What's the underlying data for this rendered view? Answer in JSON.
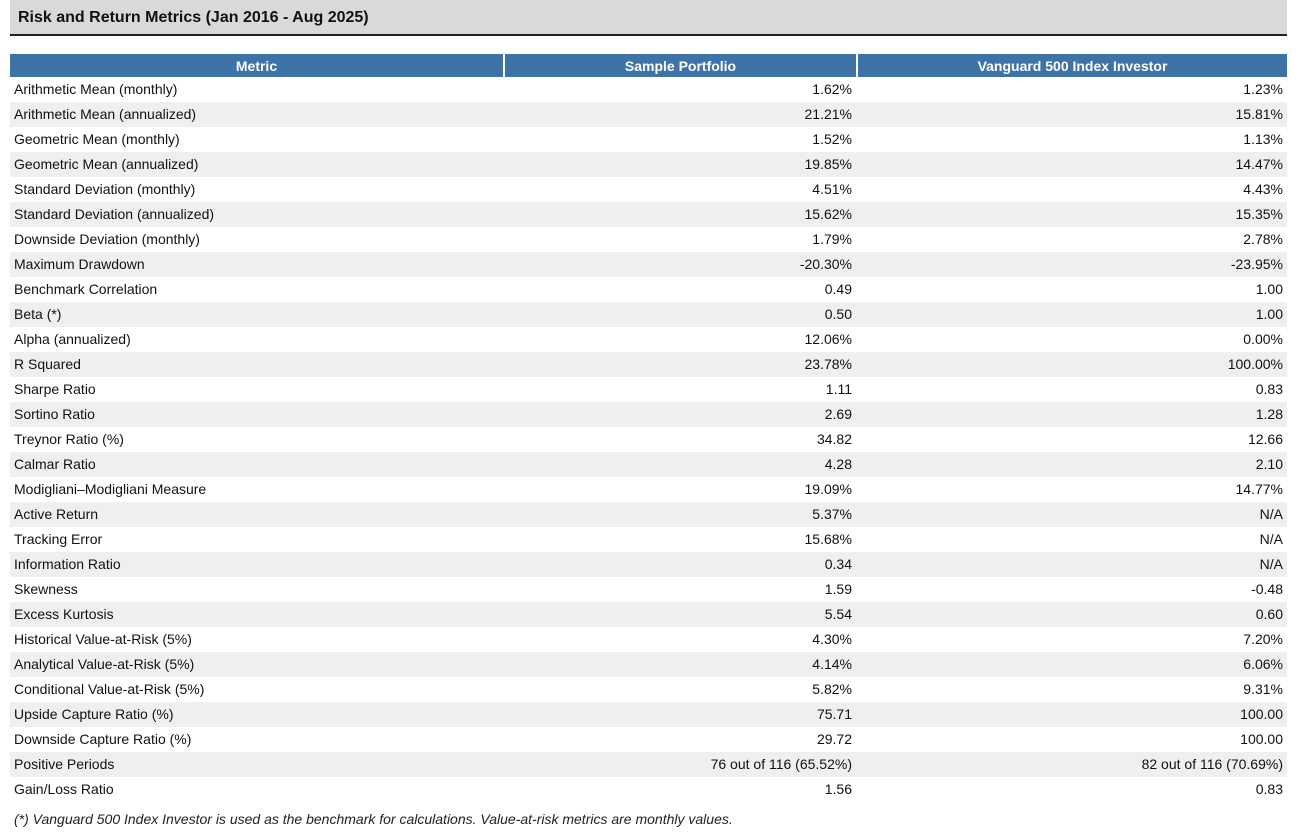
{
  "title": "Risk and Return Metrics (Jan 2016 - Aug 2025)",
  "table": {
    "headers": [
      "Metric",
      "Sample Portfolio",
      "Vanguard 500 Index Investor"
    ],
    "rows": [
      {
        "metric": "Arithmetic Mean (monthly)",
        "portfolio": "1.62%",
        "benchmark": "1.23%"
      },
      {
        "metric": "Arithmetic Mean (annualized)",
        "portfolio": "21.21%",
        "benchmark": "15.81%"
      },
      {
        "metric": "Geometric Mean (monthly)",
        "portfolio": "1.52%",
        "benchmark": "1.13%"
      },
      {
        "metric": "Geometric Mean (annualized)",
        "portfolio": "19.85%",
        "benchmark": "14.47%"
      },
      {
        "metric": "Standard Deviation (monthly)",
        "portfolio": "4.51%",
        "benchmark": "4.43%"
      },
      {
        "metric": "Standard Deviation (annualized)",
        "portfolio": "15.62%",
        "benchmark": "15.35%"
      },
      {
        "metric": "Downside Deviation (monthly)",
        "portfolio": "1.79%",
        "benchmark": "2.78%"
      },
      {
        "metric": "Maximum Drawdown",
        "portfolio": "-20.30%",
        "benchmark": "-23.95%"
      },
      {
        "metric": "Benchmark Correlation",
        "portfolio": "0.49",
        "benchmark": "1.00"
      },
      {
        "metric": "Beta (*)",
        "portfolio": "0.50",
        "benchmark": "1.00"
      },
      {
        "metric": "Alpha (annualized)",
        "portfolio": "12.06%",
        "benchmark": "0.00%"
      },
      {
        "metric": "R Squared",
        "portfolio": "23.78%",
        "benchmark": "100.00%"
      },
      {
        "metric": "Sharpe Ratio",
        "portfolio": "1.11",
        "benchmark": "0.83"
      },
      {
        "metric": "Sortino Ratio",
        "portfolio": "2.69",
        "benchmark": "1.28"
      },
      {
        "metric": "Treynor Ratio (%)",
        "portfolio": "34.82",
        "benchmark": "12.66"
      },
      {
        "metric": "Calmar Ratio",
        "portfolio": "4.28",
        "benchmark": "2.10"
      },
      {
        "metric": "Modigliani–Modigliani Measure",
        "portfolio": "19.09%",
        "benchmark": "14.77%"
      },
      {
        "metric": "Active Return",
        "portfolio": "5.37%",
        "benchmark": "N/A"
      },
      {
        "metric": "Tracking Error",
        "portfolio": "15.68%",
        "benchmark": "N/A"
      },
      {
        "metric": "Information Ratio",
        "portfolio": "0.34",
        "benchmark": "N/A"
      },
      {
        "metric": "Skewness",
        "portfolio": "1.59",
        "benchmark": "-0.48"
      },
      {
        "metric": "Excess Kurtosis",
        "portfolio": "5.54",
        "benchmark": "0.60"
      },
      {
        "metric": "Historical Value-at-Risk (5%)",
        "portfolio": "4.30%",
        "benchmark": "7.20%"
      },
      {
        "metric": "Analytical Value-at-Risk (5%)",
        "portfolio": "4.14%",
        "benchmark": "6.06%"
      },
      {
        "metric": "Conditional Value-at-Risk (5%)",
        "portfolio": "5.82%",
        "benchmark": "9.31%"
      },
      {
        "metric": "Upside Capture Ratio (%)",
        "portfolio": "75.71",
        "benchmark": "100.00"
      },
      {
        "metric": "Downside Capture Ratio (%)",
        "portfolio": "29.72",
        "benchmark": "100.00"
      },
      {
        "metric": "Positive Periods",
        "portfolio": "76 out of 116 (65.52%)",
        "benchmark": "82 out of 116 (70.69%)"
      },
      {
        "metric": "Gain/Loss Ratio",
        "portfolio": "1.56",
        "benchmark": "0.83"
      }
    ]
  },
  "footnote": "(*) Vanguard 500 Index Investor is used as the benchmark for calculations. Value-at-risk metrics are monthly values.",
  "colors": {
    "header_bg": "#3e73a8",
    "title_bar_bg": "#d9d9d9",
    "row_alt_bg": "#efefef"
  }
}
